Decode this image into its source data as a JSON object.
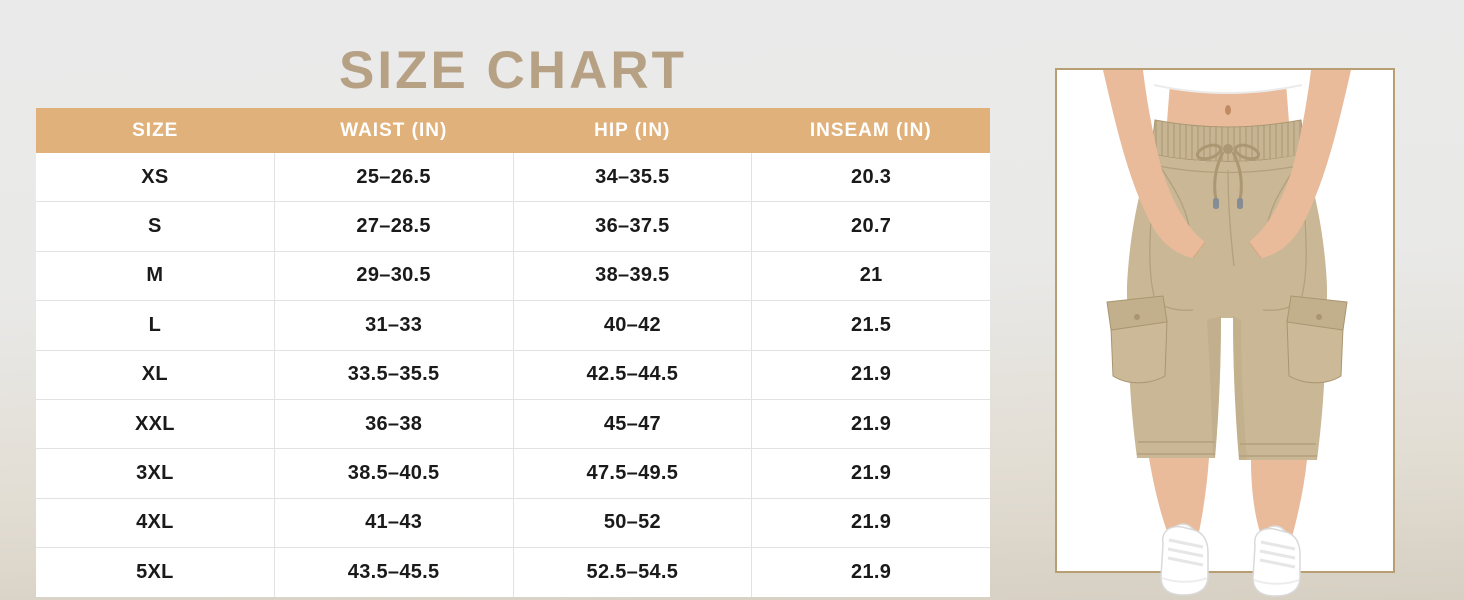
{
  "title": "SIZE CHART",
  "chart_data": {
    "type": "table",
    "title": "SIZE CHART",
    "columns": [
      "SIZE",
      "WAIST (IN)",
      "HIP (IN)",
      "INSEAM (IN)"
    ],
    "rows": [
      [
        "XS",
        "25–26.5",
        "34–35.5",
        "20.3"
      ],
      [
        "S",
        "27–28.5",
        "36–37.5",
        "20.7"
      ],
      [
        "M",
        "29–30.5",
        "38–39.5",
        "21"
      ],
      [
        "L",
        "31–33",
        "40–42",
        "21.5"
      ],
      [
        "XL",
        "33.5–35.5",
        "42.5–44.5",
        "21.9"
      ],
      [
        "XXL",
        "36–38",
        "45–47",
        "21.9"
      ],
      [
        "3XL",
        "38.5–40.5",
        "47.5–49.5",
        "21.9"
      ],
      [
        "4XL",
        "41–43",
        "50–52",
        "21.9"
      ],
      [
        "5XL",
        "43.5–45.5",
        "52.5–54.5",
        "21.9"
      ]
    ]
  },
  "colors": {
    "title_text": "#b7a184",
    "header_bg": "#e0b17a",
    "header_text": "#ffffff",
    "cell_text": "#1a1a1a",
    "photo_border": "#b89e73",
    "pants_khaki": "#c9b795",
    "background_top": "#e9e9e9",
    "background_bottom": "#d6cfc2"
  }
}
